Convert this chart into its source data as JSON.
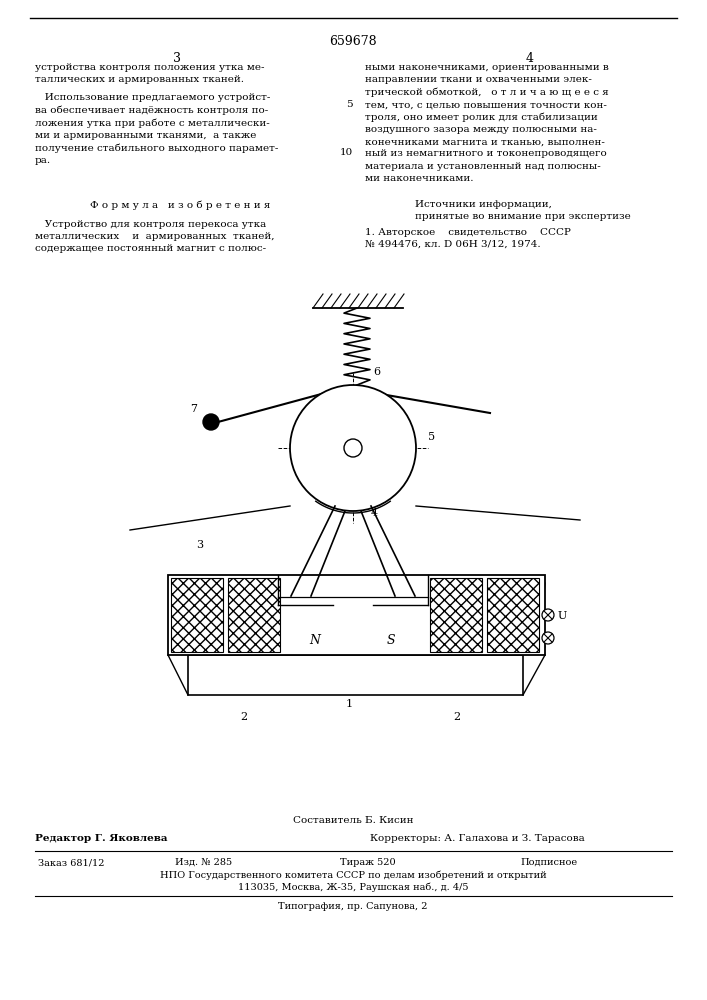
{
  "page_number": "659678",
  "col_left": "3",
  "col_right": "4",
  "text_left_para1": "устройства контроля положения утка ме-\nталлических и армированных тканей.",
  "text_left_para2": "   Использование предлагаемого устройст-\nва обеспечивает надёжность контроля по-\nложения утка при работе с металлически-\nми и армированными тканями,  а также\nполучение стабильного выходного парамет-\nра.",
  "text_left_formula_header": "Ф о р м у л а   и з о б р е т е н и я",
  "text_left_formula_body": "   Устройство для контроля перекоса утка\nметаллических    и  армированных  тканей,\nсодержащее постоянный магнит с полюс-",
  "text_right_para1": "ными наконечниками, ориентированными в\nнаправлении ткани и охваченными элек-\nтрической обмоткой,   о т л и ч а ю щ е е с я\nтем, что, с целью повышения точности кон-\nтроля, оно имеет ролик для стабилизации\nвоздушного зазора между полюсными на-\nконечниками магнита и тканью, выполнен-\nный из немагнитного и токонепроводящего\nматериала и установленный над полюсны-\nми наконечниками.",
  "text_right_sources_header": "Источники информации,\nпринятые во внимание при экспертизе",
  "text_right_sources_body": "1. Авторское    свидетельство    СССР\n№ 494476, кл. D 06Н 3/12, 1974.",
  "footer_composer": "Составитель Б. Кисин",
  "footer_editor": "Редактор Г. Яковлева",
  "footer_correctors": "Корректоры: А. Галахова и З. Тарасова",
  "footer_line1a": "Заказ 681/12",
  "footer_line1b": "Изд. № 285",
  "footer_line1c": "Тираж 520",
  "footer_line1d": "Подписное",
  "footer_line2": "НПО Государственного комитета СССР по делам изобретений и открытий",
  "footer_line3": "113035, Москва, Ж-35, Раушская наб., д. 4/5",
  "footer_line4": "Типография, пр. Сапунова, 2",
  "bg_color": "#ffffff",
  "text_color": "#000000",
  "line_color": "#000000"
}
